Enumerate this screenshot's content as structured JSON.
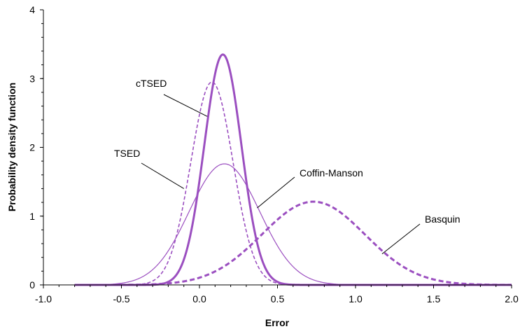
{
  "chart_data": {
    "type": "line",
    "title": "",
    "xlabel": "Error",
    "ylabel": "Probability density function",
    "xlim": [
      -1.0,
      2.0
    ],
    "ylim": [
      0,
      4
    ],
    "x_ticks": [
      "-1.0",
      "-0.5",
      "0.0",
      "0.5",
      "1.0",
      "1.5",
      "2.0"
    ],
    "y_ticks": [
      "0",
      "1",
      "2",
      "3",
      "4"
    ],
    "grid": false,
    "legend": "none",
    "color": "#9b4fc0",
    "series": [
      {
        "name": "cTSED",
        "distribution": "normal",
        "mean": 0.15,
        "std": 0.119,
        "peak": 3.35,
        "style": "solid-thick",
        "points": [
          [
            -0.3,
            0.003
          ],
          [
            -0.2,
            0.045
          ],
          [
            -0.1,
            0.371
          ],
          [
            0.0,
            1.518
          ],
          [
            0.05,
            2.355
          ],
          [
            0.1,
            3.058
          ],
          [
            0.15,
            3.35
          ],
          [
            0.2,
            3.058
          ],
          [
            0.25,
            2.355
          ],
          [
            0.3,
            1.518
          ],
          [
            0.4,
            0.371
          ],
          [
            0.5,
            0.045
          ],
          [
            0.6,
            0.003
          ]
        ]
      },
      {
        "name": "TSED",
        "distribution": "normal",
        "mean": 0.08,
        "std": 0.135,
        "peak": 2.95,
        "style": "dashed-thin",
        "points": [
          [
            -0.4,
            0.005
          ],
          [
            -0.3,
            0.055
          ],
          [
            -0.2,
            0.345
          ],
          [
            -0.1,
            1.207
          ],
          [
            0.0,
            2.48
          ],
          [
            0.08,
            2.95
          ],
          [
            0.15,
            2.64
          ],
          [
            0.2,
            2.21
          ],
          [
            0.3,
            0.95
          ],
          [
            0.4,
            0.18
          ],
          [
            0.5,
            0.02
          ],
          [
            0.6,
            0.001
          ]
        ]
      },
      {
        "name": "Coffin-Manson",
        "distribution": "normal",
        "mean": 0.16,
        "std": 0.226,
        "peak": 1.76,
        "style": "solid-thin",
        "points": [
          [
            -0.6,
            0.006
          ],
          [
            -0.4,
            0.1
          ],
          [
            -0.2,
            0.49
          ],
          [
            0.0,
            1.37
          ],
          [
            0.16,
            1.76
          ],
          [
            0.3,
            1.46
          ],
          [
            0.5,
            0.56
          ],
          [
            0.7,
            0.1
          ],
          [
            0.9,
            0.008
          ]
        ]
      },
      {
        "name": "Basquin",
        "distribution": "normal",
        "mean": 0.73,
        "std": 0.33,
        "peak": 1.21,
        "style": "dashed-thick",
        "points": [
          [
            -0.2,
            0.02
          ],
          [
            0.0,
            0.104
          ],
          [
            0.2,
            0.334
          ],
          [
            0.4,
            0.734
          ],
          [
            0.6,
            1.12
          ],
          [
            0.73,
            1.21
          ],
          [
            0.9,
            1.1
          ],
          [
            1.1,
            0.76
          ],
          [
            1.3,
            0.39
          ],
          [
            1.5,
            0.16
          ],
          [
            1.7,
            0.05
          ],
          [
            1.9,
            0.012
          ],
          [
            2.0,
            0.005
          ]
        ]
      }
    ],
    "annotations": [
      {
        "text": "cTSED",
        "points_to_x": 0.05,
        "points_to_y": 2.45
      },
      {
        "text": "TSED",
        "points_to_x": -0.1,
        "points_to_y": 1.4
      },
      {
        "text": "Coffin-Manson",
        "points_to_x": 0.37,
        "points_to_y": 1.12
      },
      {
        "text": "Basquin",
        "points_to_x": 1.17,
        "points_to_y": 0.45
      }
    ]
  }
}
